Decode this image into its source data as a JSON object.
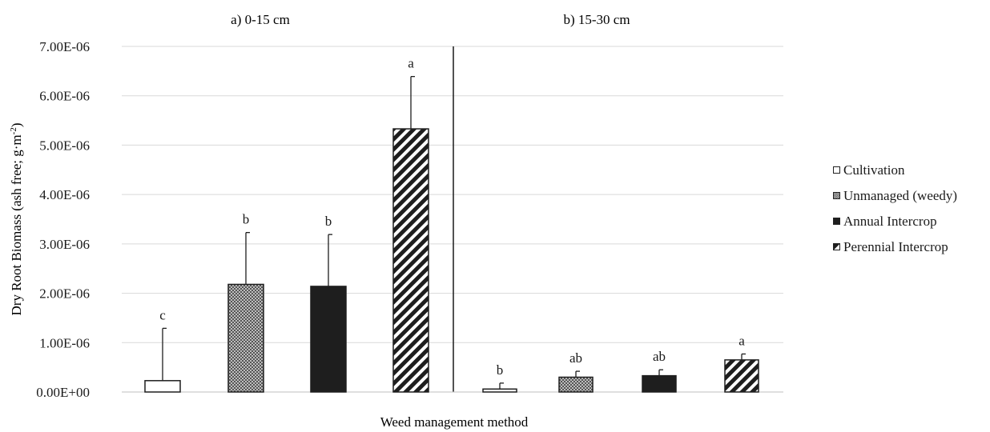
{
  "chart_data": {
    "type": "bar",
    "ylabel": "Dry Root Biomass (ash free; g·m⁻²)",
    "xlabel": "Weed management method",
    "ylim": [
      0,
      7e-06
    ],
    "yticks": [
      "0.00E+00",
      "1.00E-06",
      "2.00E-06",
      "3.00E-06",
      "4.00E-06",
      "5.00E-06",
      "6.00E-06",
      "7.00E-06"
    ],
    "grid": true,
    "legend_position": "right",
    "panels": [
      {
        "title": "a) 0-15 cm",
        "series": [
          {
            "name": "Cultivation",
            "value": 2.3e-07,
            "error": 1.06e-06,
            "letter": "c"
          },
          {
            "name": "Unmanaged (weedy)",
            "value": 2.18e-06,
            "error": 1.05e-06,
            "letter": "b"
          },
          {
            "name": "Annual Intercrop",
            "value": 2.14e-06,
            "error": 1.05e-06,
            "letter": "b"
          },
          {
            "name": "Perennial Intercrop",
            "value": 5.33e-06,
            "error": 1.06e-06,
            "letter": "a"
          }
        ]
      },
      {
        "title": "b) 15-30 cm",
        "series": [
          {
            "name": "Cultivation",
            "value": 6e-08,
            "error": 1.2e-07,
            "letter": "b"
          },
          {
            "name": "Unmanaged (weedy)",
            "value": 3e-07,
            "error": 1.2e-07,
            "letter": "ab"
          },
          {
            "name": "Annual Intercrop",
            "value": 3.3e-07,
            "error": 1.2e-07,
            "letter": "ab"
          },
          {
            "name": "Perennial Intercrop",
            "value": 6.5e-07,
            "error": 1.2e-07,
            "letter": "a"
          }
        ]
      }
    ]
  },
  "legend": {
    "items": [
      {
        "label": "Cultivation",
        "pattern": "empty"
      },
      {
        "label": "Unmanaged (weedy)",
        "pattern": "dots"
      },
      {
        "label": "Annual Intercrop",
        "pattern": "solid"
      },
      {
        "label": "Perennial Intercrop",
        "pattern": "stripes"
      }
    ]
  },
  "colors": {
    "bar_dark": "#1e1e1e",
    "grid": "#d9d9d9",
    "text": "#1a1a1a"
  }
}
